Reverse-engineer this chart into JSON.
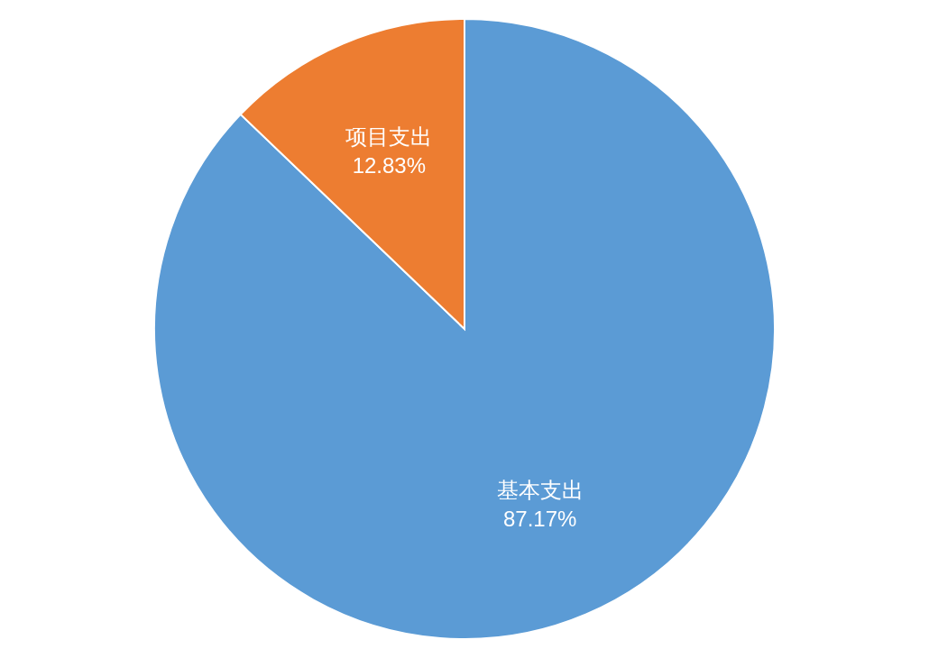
{
  "chart_data": {
    "type": "pie",
    "categories": [
      "基本支出",
      "项目支出"
    ],
    "values": [
      87.17,
      12.83
    ],
    "colors": [
      "#5b9bd5",
      "#ed7d31"
    ],
    "value_labels": [
      "87.17%",
      "12.83%"
    ],
    "legend": false
  }
}
